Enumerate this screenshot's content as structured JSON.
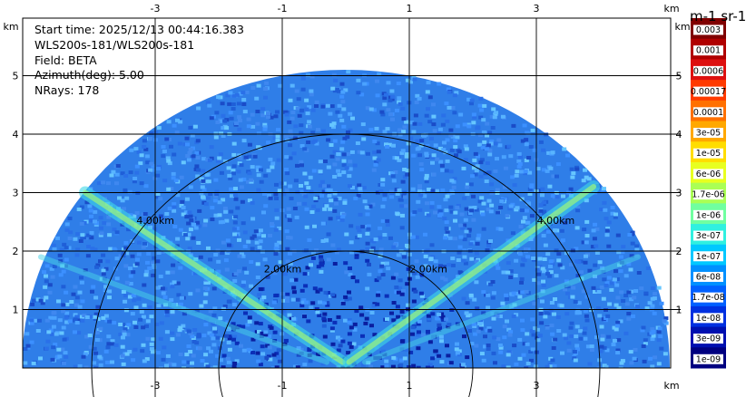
{
  "info": {
    "start_time": "Start time: 2025/12/13 00:44:16.383",
    "instrument": "WLS200s-181/WLS200s-181",
    "field": "Field: BETA",
    "azimuth": "Azimuth(deg): 5.00",
    "nrays": "NRays: 178"
  },
  "chart_data": {
    "type": "heatmap",
    "projection": "range-height (RHI) polar scan",
    "xlabel": "km",
    "ylabel": "km",
    "x_ticks": [
      "-3",
      "-1",
      "1",
      "3"
    ],
    "x_tick_values": [
      -3,
      -1,
      1,
      3
    ],
    "y_ticks": [
      "1",
      "2",
      "3",
      "4",
      "5"
    ],
    "y_tick_values": [
      1,
      2,
      3,
      4,
      5
    ],
    "xlim": [
      -5.4,
      5.0
    ],
    "ylim": [
      0,
      6.0
    ],
    "max_range_km": 5.1,
    "range_rings": [
      {
        "radius_km": 2.0,
        "label": "2.00km"
      },
      {
        "radius_km": 4.0,
        "label": "4.00km"
      }
    ],
    "colorbar": {
      "title": "m-1 sr-1",
      "tick_labels": [
        "0.003",
        "0.001",
        "0.0006",
        "0.00017",
        "0.0001",
        "3e-05",
        "1e-05",
        "6e-06",
        "1.7e-06",
        "1e-06",
        "3e-07",
        "1e-07",
        "6e-08",
        "1.7e-08",
        "1e-08",
        "3e-09",
        "1e-09"
      ],
      "colors": [
        "#800000",
        "#b00000",
        "#dd1010",
        "#ff3a00",
        "#ff7000",
        "#ffa800",
        "#ffdd00",
        "#e8ff20",
        "#aaff55",
        "#70ffa0",
        "#30f0e0",
        "#00c8ff",
        "#0090ff",
        "#0060ff",
        "#0030e0",
        "#0010b0",
        "#000080"
      ]
    }
  }
}
